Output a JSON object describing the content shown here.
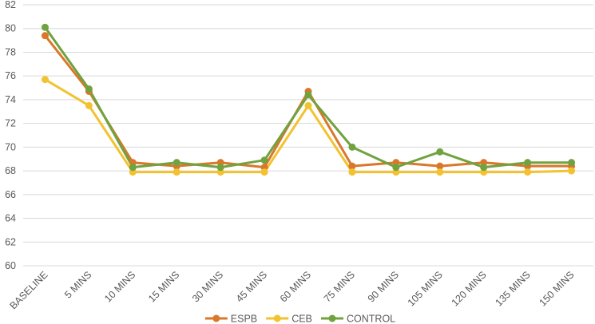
{
  "chart_data": {
    "type": "line",
    "title": "",
    "xlabel": "",
    "ylabel": "",
    "categories": [
      "BASELINE",
      "5 MINS",
      "10 MINS",
      "15 MINS",
      "30 MINS",
      "45 MINS",
      "60 MINS",
      "75 MINS",
      "90 MINS",
      "105 MINS",
      "120 MINS",
      "135 MINS",
      "150 MINS"
    ],
    "ylim": [
      60,
      82
    ],
    "yticks": [
      60,
      62,
      64,
      66,
      68,
      70,
      72,
      74,
      76,
      78,
      80,
      82
    ],
    "grid": true,
    "legend_position": "bottom",
    "series": [
      {
        "name": "ESPB",
        "color": "#D9772B",
        "values": [
          79.4,
          74.7,
          68.7,
          68.4,
          68.7,
          68.3,
          74.7,
          68.4,
          68.7,
          68.4,
          68.7,
          68.4,
          68.4
        ]
      },
      {
        "name": "CEB",
        "color": "#F2C230",
        "values": [
          75.7,
          73.5,
          67.9,
          67.9,
          67.9,
          67.9,
          73.5,
          67.9,
          67.9,
          67.9,
          67.9,
          67.9,
          68.0
        ]
      },
      {
        "name": "CONTROL",
        "color": "#70A33F",
        "values": [
          80.1,
          74.9,
          68.3,
          68.7,
          68.3,
          68.9,
          74.4,
          70.0,
          68.3,
          69.6,
          68.3,
          68.7,
          68.7
        ]
      }
    ]
  }
}
